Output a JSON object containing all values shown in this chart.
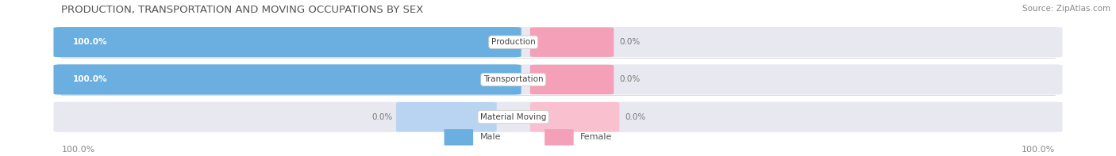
{
  "title": "PRODUCTION, TRANSPORTATION AND MOVING OCCUPATIONS BY SEX",
  "source": "Source: ZipAtlas.com",
  "categories": [
    "Production",
    "Transportation",
    "Material Moving"
  ],
  "male_values": [
    100.0,
    100.0,
    0.0
  ],
  "female_values": [
    0.0,
    0.0,
    0.0
  ],
  "male_color": "#6aafe0",
  "female_color": "#f4a0b8",
  "male_light_color": "#b8d4f0",
  "female_light_color": "#f9c0d0",
  "bar_bg_color": "#e8e8f0",
  "bg_color": "#ffffff",
  "title_fontsize": 9.5,
  "source_fontsize": 7.5,
  "bar_label_fontsize": 7.5,
  "axis_label_fontsize": 8,
  "legend_fontsize": 8
}
